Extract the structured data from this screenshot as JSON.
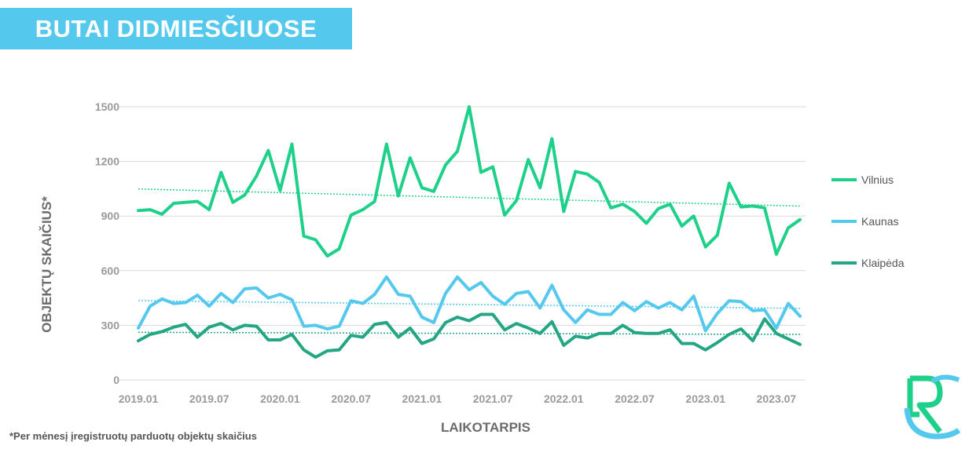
{
  "title": "BUTAI DIDMIESČIUOSE",
  "footnote": "*Per mėnesį įregistruotų parduotų objektų skaičius",
  "logo": "rc-logo",
  "chart_data": {
    "type": "line",
    "xlabel": "LAIKOTARPIS",
    "ylabel": "OBJEKTŲ SKAIČIUS*",
    "ylim": [
      0,
      1500
    ],
    "yticks": [
      "0",
      "300",
      "600",
      "900",
      "1200",
      "1500"
    ],
    "xtick_labels": [
      "2019.01",
      "2019.07",
      "2020.01",
      "2020.07",
      "2021.01",
      "2021.07",
      "2022.01",
      "2022.07",
      "2023.01",
      "2023.07"
    ],
    "x_start": "2019.01",
    "x_end": "2023.09",
    "grid": "horizontal",
    "legend": "right",
    "trendlines": true,
    "series": [
      {
        "name": "Vilnius",
        "color": "#1ed08a",
        "values": [
          930,
          935,
          910,
          970,
          975,
          980,
          935,
          1140,
          975,
          1015,
          1120,
          1260,
          1040,
          1295,
          790,
          770,
          680,
          720,
          905,
          935,
          980,
          1295,
          1010,
          1220,
          1055,
          1035,
          1180,
          1255,
          1500,
          1140,
          1170,
          905,
          985,
          1210,
          1055,
          1325,
          925,
          1145,
          1130,
          1085,
          945,
          965,
          925,
          860,
          940,
          965,
          845,
          900,
          730,
          795,
          1080,
          950,
          955,
          945,
          690,
          835,
          880
        ]
      },
      {
        "name": "Kaunas",
        "color": "#55c8ee",
        "values": [
          285,
          405,
          445,
          420,
          425,
          465,
          405,
          475,
          425,
          500,
          505,
          450,
          470,
          440,
          295,
          300,
          280,
          295,
          435,
          420,
          470,
          565,
          470,
          460,
          345,
          315,
          475,
          565,
          495,
          535,
          460,
          415,
          475,
          485,
          395,
          520,
          385,
          315,
          385,
          360,
          360,
          425,
          380,
          430,
          395,
          425,
          385,
          460,
          270,
          365,
          435,
          430,
          380,
          385,
          285,
          420,
          350
        ]
      },
      {
        "name": "Klaipėda",
        "color": "#24a584",
        "values": [
          215,
          250,
          265,
          290,
          305,
          235,
          290,
          310,
          275,
          300,
          295,
          220,
          220,
          250,
          165,
          125,
          160,
          165,
          245,
          235,
          305,
          315,
          235,
          285,
          200,
          225,
          315,
          345,
          325,
          360,
          360,
          275,
          310,
          285,
          255,
          320,
          190,
          240,
          230,
          255,
          255,
          300,
          260,
          255,
          255,
          275,
          200,
          200,
          165,
          205,
          250,
          280,
          215,
          335,
          255,
          225,
          195
        ]
      }
    ]
  }
}
